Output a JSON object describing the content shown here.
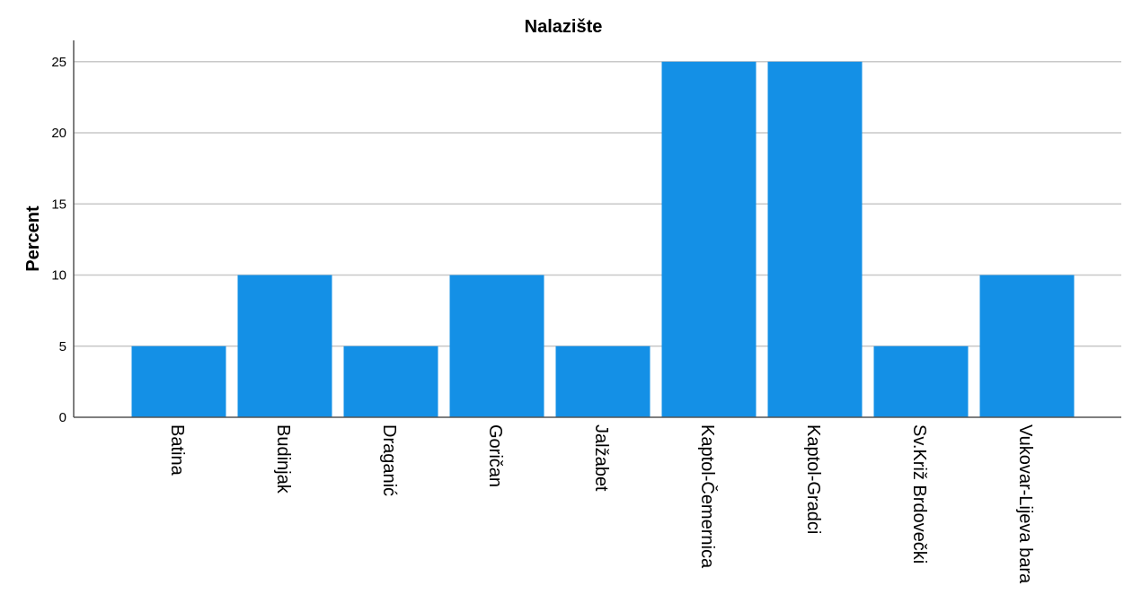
{
  "chart_data": {
    "type": "bar",
    "title": "Nalazište",
    "xlabel": "",
    "ylabel": "Percent",
    "categories": [
      "Batina",
      "Budinjak",
      "Draganić",
      "Goričan",
      "Jalžabet",
      "Kaptol-Čemernica",
      "Kaptol-Gradci",
      "Sv.Križ Brdovečki",
      "Vukovar-Lijeva bara"
    ],
    "values": [
      5,
      10,
      5,
      10,
      5,
      25,
      25,
      5,
      10
    ],
    "ylim": [
      0,
      26.5
    ],
    "yticks": [
      0,
      5,
      10,
      15,
      20,
      25
    ],
    "grid": true,
    "bar_color": "#1490e6",
    "x_tick_label_rotation": "vertical"
  }
}
